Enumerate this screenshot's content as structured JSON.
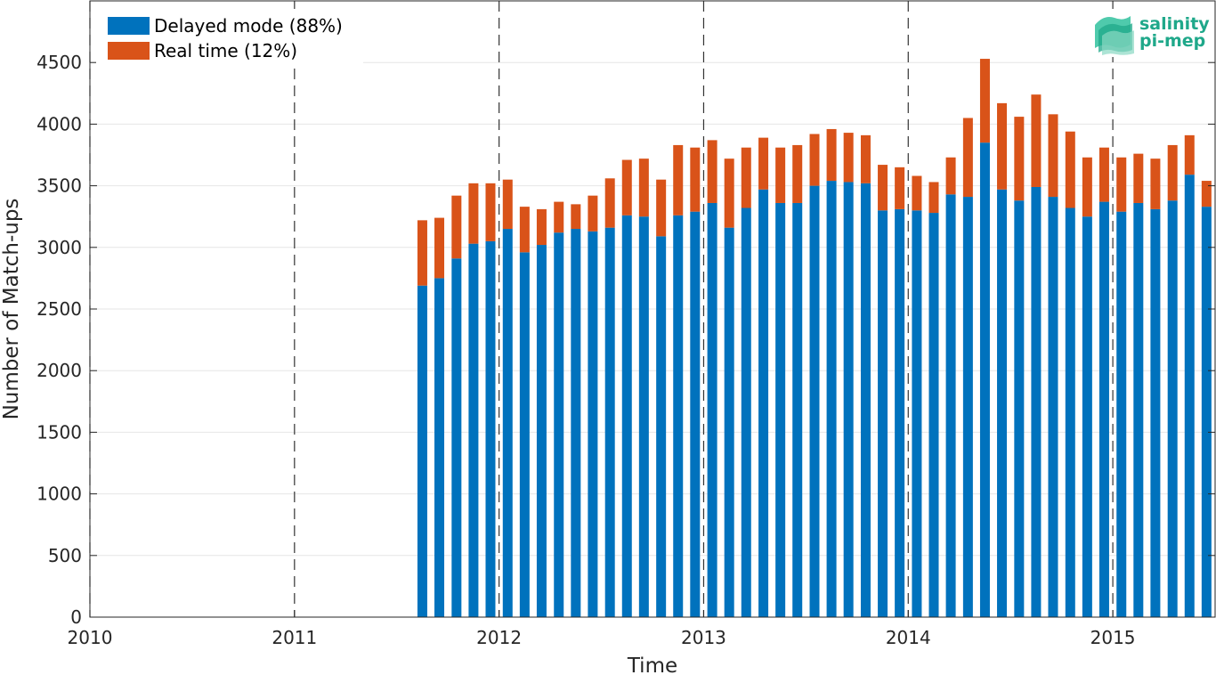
{
  "chart_data": {
    "type": "bar",
    "stacked": true,
    "xlabel": "Time",
    "ylabel": "Number of Match-ups",
    "xlim": [
      2010,
      2015.5
    ],
    "ylim": [
      0,
      5000
    ],
    "x_ticks": [
      2010,
      2011,
      2012,
      2013,
      2014,
      2015
    ],
    "y_ticks": [
      0,
      500,
      1000,
      1500,
      2000,
      2500,
      3000,
      3500,
      4000,
      4500
    ],
    "year_boundaries": [
      2011,
      2012,
      2013,
      2014,
      2015
    ],
    "grid": true,
    "legend_position": "top-left",
    "colors": {
      "delayed": "#0072bd",
      "realtime": "#d95319"
    },
    "x": [
      "2011-08",
      "2011-09",
      "2011-10",
      "2011-11",
      "2011-12",
      "2012-01",
      "2012-02",
      "2012-03",
      "2012-04",
      "2012-05",
      "2012-06",
      "2012-07",
      "2012-08",
      "2012-09",
      "2012-10",
      "2012-11",
      "2012-12",
      "2013-01",
      "2013-02",
      "2013-03",
      "2013-04",
      "2013-05",
      "2013-06",
      "2013-07",
      "2013-08",
      "2013-09",
      "2013-10",
      "2013-11",
      "2013-12",
      "2014-01",
      "2014-02",
      "2014-03",
      "2014-04",
      "2014-05",
      "2014-06",
      "2014-07",
      "2014-08",
      "2014-09",
      "2014-10",
      "2014-11",
      "2014-12",
      "2015-01",
      "2015-02",
      "2015-03",
      "2015-04",
      "2015-05",
      "2015-06"
    ],
    "x_decimal": [
      2011.625,
      2011.708,
      2011.792,
      2011.875,
      2011.958,
      2012.042,
      2012.125,
      2012.208,
      2012.292,
      2012.375,
      2012.458,
      2012.542,
      2012.625,
      2012.708,
      2012.792,
      2012.875,
      2012.958,
      2013.042,
      2013.125,
      2013.208,
      2013.292,
      2013.375,
      2013.458,
      2013.542,
      2013.625,
      2013.708,
      2013.792,
      2013.875,
      2013.958,
      2014.042,
      2014.125,
      2014.208,
      2014.292,
      2014.375,
      2014.458,
      2014.542,
      2014.625,
      2014.708,
      2014.792,
      2014.875,
      2014.958,
      2015.042,
      2015.125,
      2015.208,
      2015.292,
      2015.375,
      2015.458
    ],
    "series": [
      {
        "name": "Delayed mode (88%)",
        "values": [
          2690,
          2750,
          2910,
          3030,
          3050,
          3150,
          2960,
          3020,
          3120,
          3150,
          3130,
          3160,
          3260,
          3250,
          3090,
          3260,
          3290,
          3360,
          3160,
          3320,
          3470,
          3360,
          3360,
          3500,
          3540,
          3530,
          3520,
          3300,
          3310,
          3300,
          3280,
          3430,
          3410,
          3850,
          3470,
          3380,
          3490,
          3410,
          3320,
          3250,
          3370,
          3290,
          3360,
          3310,
          3380,
          3590,
          3330
        ]
      },
      {
        "name": "Real time (12%)",
        "values": [
          530,
          490,
          510,
          490,
          470,
          400,
          370,
          290,
          250,
          200,
          290,
          400,
          450,
          470,
          460,
          570,
          520,
          510,
          560,
          490,
          420,
          450,
          470,
          420,
          420,
          400,
          390,
          370,
          340,
          280,
          250,
          300,
          640,
          680,
          700,
          680,
          750,
          670,
          620,
          480,
          440,
          440,
          400,
          410,
          450,
          320,
          210
        ]
      }
    ]
  },
  "logo": {
    "line1": "salinity",
    "line2": "pi-mep"
  }
}
